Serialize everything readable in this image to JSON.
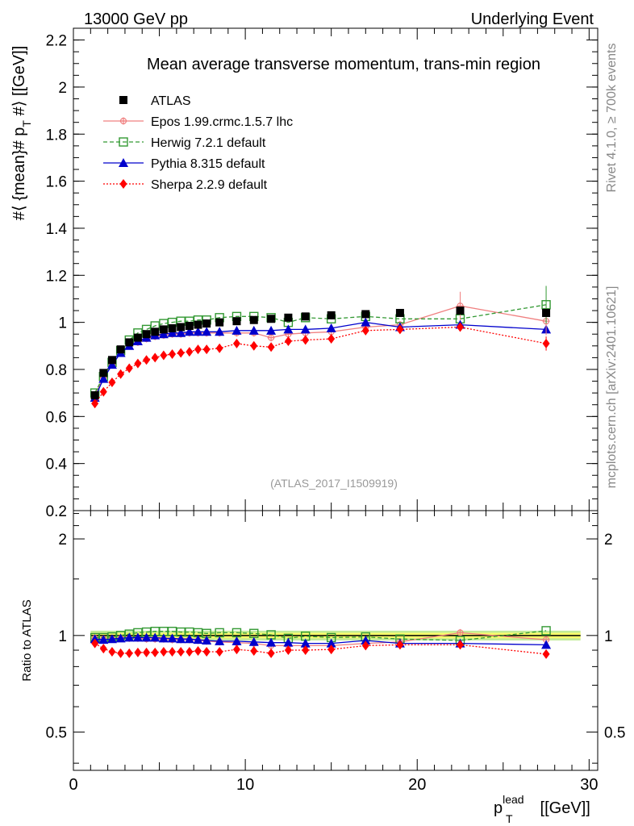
{
  "header": {
    "left": "13000 GeV pp",
    "right": "Underlying Event"
  },
  "side": {
    "rivet": "Rivet 4.1.0, ≥ 700k events",
    "mcplots": "mcplots.cern.ch [arXiv:2401.10621]"
  },
  "chart_data": {
    "type": "line",
    "title": "Mean average transverse momentum, trans-min region",
    "watermark": "(ATLAS_2017_I1509919)",
    "ylabel": "#⟨ {mean}# p_T #⟩ [[GeV]]",
    "ylabel_parts": {
      "pre": "#⟨ {mean}# p",
      "sub": "T",
      "post": " #⟩ [[GeV]]"
    },
    "xlabel_parts": {
      "main": "p",
      "sup": "lead",
      "sub": "T",
      "post": " [[GeV]]"
    },
    "ratio_ylabel": "Ratio to ATLAS",
    "xlim": [
      0,
      30.5
    ],
    "ylim": [
      0.2,
      2.25
    ],
    "ratio_ylim": [
      0.38,
      2.45
    ],
    "x_ticks": [
      "0",
      "10",
      "20",
      "30"
    ],
    "y_ticks": [
      "0.2",
      "0.4",
      "0.6",
      "0.8",
      "1",
      "1.2",
      "1.4",
      "1.6",
      "1.8",
      "2",
      "2.2"
    ],
    "ratio_ticks": [
      "0.5",
      "1",
      "2"
    ],
    "x": [
      1.25,
      1.75,
      2.25,
      2.75,
      3.25,
      3.75,
      4.25,
      4.75,
      5.25,
      5.75,
      6.25,
      6.75,
      7.25,
      7.75,
      8.5,
      9.5,
      10.5,
      11.5,
      12.5,
      13.5,
      15.0,
      17.0,
      19.0,
      22.5,
      27.5
    ],
    "series": [
      {
        "name": "ATLAS",
        "color": "#000000",
        "marker": "square",
        "values": [
          0.69,
          0.785,
          0.84,
          0.885,
          0.915,
          0.935,
          0.95,
          0.96,
          0.97,
          0.975,
          0.98,
          0.985,
          0.99,
          0.995,
          1.0,
          1.005,
          1.01,
          1.015,
          1.02,
          1.025,
          1.03,
          1.035,
          1.04,
          1.05,
          1.04
        ]
      },
      {
        "name": "Epos 1.99.crmc.1.5.7 lhc",
        "color": "#f08080",
        "marker": "cross-circle",
        "dash": "",
        "values": [
          0.69,
          0.765,
          0.82,
          0.87,
          0.9,
          0.915,
          0.93,
          0.94,
          0.945,
          0.95,
          0.95,
          0.955,
          0.955,
          0.955,
          0.955,
          0.955,
          0.955,
          0.935,
          0.95,
          0.955,
          0.96,
          0.98,
          0.99,
          1.07,
          1.005
        ]
      },
      {
        "name": "Herwig 7.2.1 default",
        "color": "#339933",
        "marker": "open-square",
        "dash": "5,3",
        "values": [
          0.7,
          0.77,
          0.83,
          0.88,
          0.925,
          0.955,
          0.97,
          0.985,
          0.995,
          1.0,
          1.005,
          1.005,
          1.01,
          1.01,
          1.02,
          1.025,
          1.025,
          1.02,
          1.0,
          1.02,
          1.015,
          1.025,
          1.015,
          1.015,
          1.075
        ]
      },
      {
        "name": "Pythia 8.315 default",
        "color": "#0000cc",
        "marker": "triangle",
        "dash": "",
        "values": [
          0.68,
          0.76,
          0.82,
          0.87,
          0.9,
          0.92,
          0.935,
          0.945,
          0.95,
          0.955,
          0.955,
          0.96,
          0.96,
          0.96,
          0.96,
          0.965,
          0.965,
          0.965,
          0.97,
          0.97,
          0.975,
          1.0,
          0.98,
          0.99,
          0.97
        ]
      },
      {
        "name": "Sherpa 2.2.9 default",
        "color": "#ff0000",
        "marker": "diamond",
        "dash": "2,2",
        "values": [
          0.655,
          0.705,
          0.745,
          0.78,
          0.805,
          0.825,
          0.84,
          0.85,
          0.86,
          0.865,
          0.87,
          0.875,
          0.885,
          0.885,
          0.89,
          0.91,
          0.9,
          0.895,
          0.92,
          0.925,
          0.93,
          0.965,
          0.97,
          0.98,
          0.91
        ]
      }
    ],
    "ratio_series": [
      {
        "name": "Epos 1.99.crmc.1.5.7 lhc",
        "values": [
          0.98,
          0.975,
          0.975,
          0.98,
          0.98,
          0.98,
          0.975,
          0.975,
          0.975,
          0.97,
          0.97,
          0.97,
          0.965,
          0.96,
          0.955,
          0.95,
          0.945,
          0.93,
          0.93,
          0.93,
          0.93,
          0.945,
          0.955,
          1.02,
          0.97
        ]
      },
      {
        "name": "Herwig 7.2.1 default",
        "values": [
          0.985,
          0.985,
          0.99,
          1.0,
          1.01,
          1.02,
          1.025,
          1.03,
          1.03,
          1.03,
          1.025,
          1.025,
          1.02,
          1.015,
          1.02,
          1.02,
          1.015,
          1.005,
          0.98,
          0.995,
          0.985,
          0.99,
          0.975,
          0.965,
          1.035
        ]
      },
      {
        "name": "Pythia 8.315 default",
        "values": [
          0.975,
          0.97,
          0.975,
          0.98,
          0.985,
          0.985,
          0.985,
          0.985,
          0.98,
          0.98,
          0.975,
          0.975,
          0.97,
          0.965,
          0.96,
          0.96,
          0.955,
          0.95,
          0.95,
          0.945,
          0.945,
          0.965,
          0.945,
          0.945,
          0.935
        ]
      },
      {
        "name": "Sherpa 2.2.9 default",
        "values": [
          0.945,
          0.91,
          0.89,
          0.88,
          0.88,
          0.885,
          0.885,
          0.885,
          0.89,
          0.89,
          0.89,
          0.89,
          0.895,
          0.89,
          0.89,
          0.905,
          0.895,
          0.88,
          0.9,
          0.9,
          0.905,
          0.93,
          0.935,
          0.935,
          0.875
        ]
      }
    ],
    "band_color": "#ffff66",
    "band_color_outer": "#99dd55"
  }
}
